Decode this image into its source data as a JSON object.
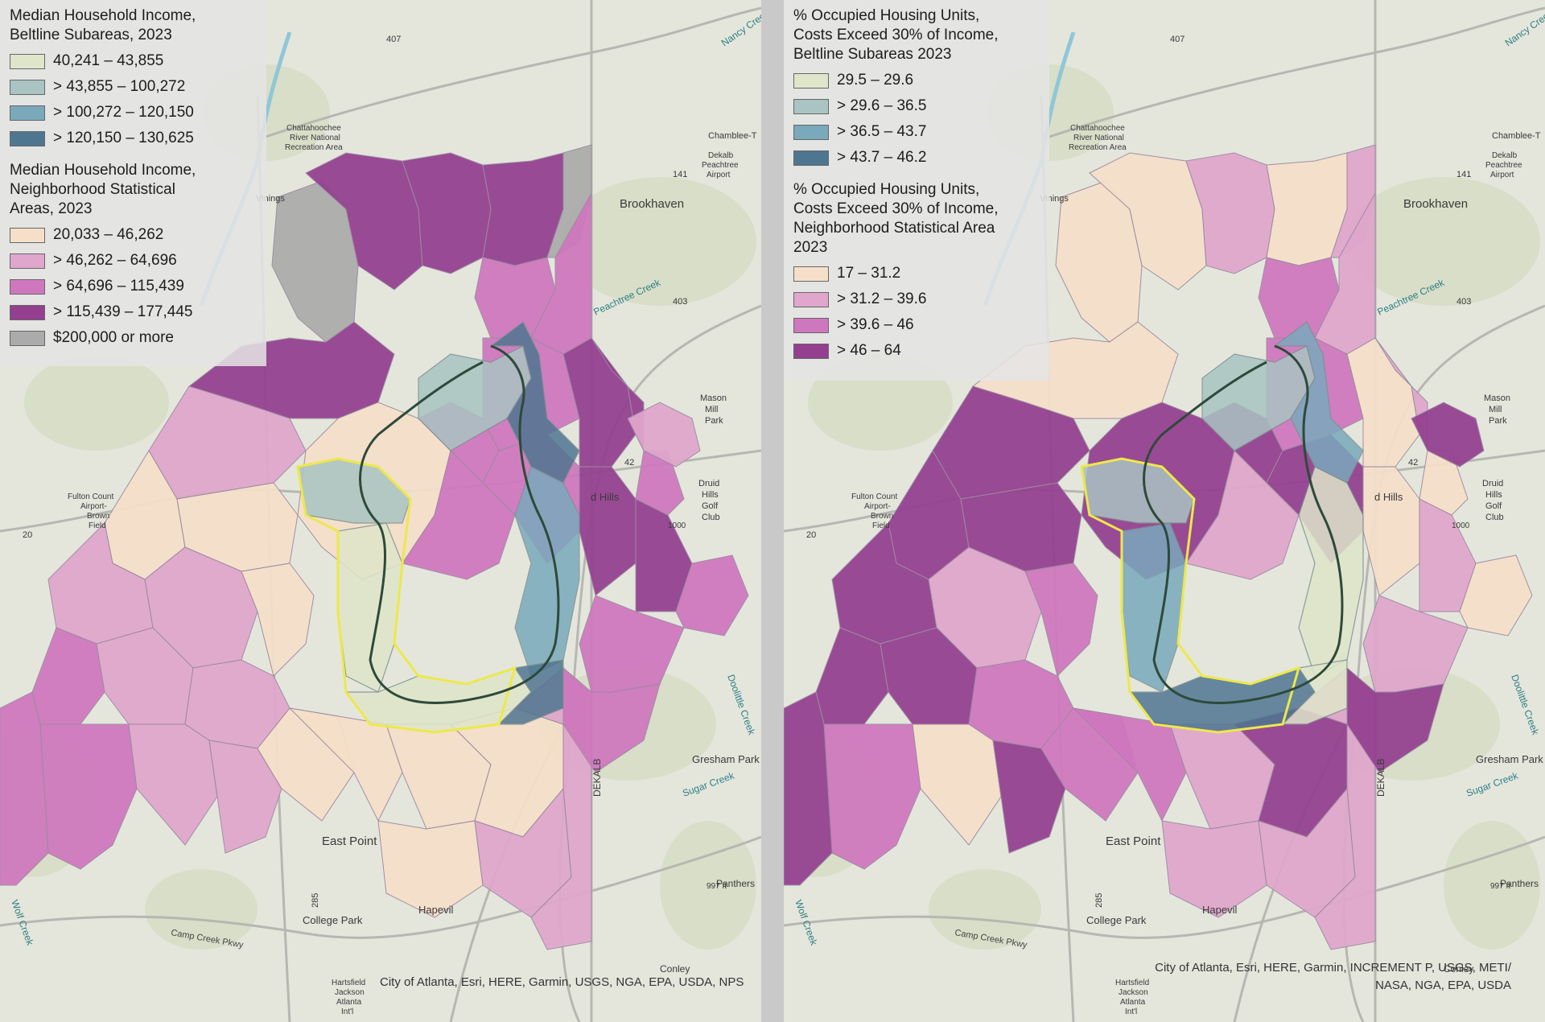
{
  "left_map": {
    "beltline_legend": {
      "title": "Median Household Income, Beltline Subareas, 2023",
      "title_lines": [
        "Median Household Income,",
        "Beltline Subareas, 2023"
      ],
      "classes": [
        {
          "label": "40,241 – 43,855",
          "color": "#dfe5c9"
        },
        {
          "label": "> 43,855 – 100,272",
          "color": "#a9c4c2"
        },
        {
          "label": "> 100,272 – 120,150",
          "color": "#7aa9bc"
        },
        {
          "label": "> 120,150 – 130,625",
          "color": "#4f7691"
        }
      ]
    },
    "nsa_legend": {
      "title": "Median Household Income, Neighborhood Statistical Areas, 2023",
      "title_lines": [
        "Median Household Income,",
        "Neighborhood Statistical",
        "Areas, 2023"
      ],
      "classes": [
        {
          "label": "20,033 – 46,262",
          "color": "#f6dfc9"
        },
        {
          "label": "> 46,262 – 64,696",
          "color": "#e0a6cc"
        },
        {
          "label": "> 64,696 – 115,439",
          "color": "#cf77be"
        },
        {
          "label": "> 115,439 – 177,445",
          "color": "#943f8f"
        },
        {
          "label": "$200,000 or more",
          "color": "#ababab"
        }
      ]
    },
    "credit": "City of Atlanta, Esri, HERE, Garmin, USGS, NGA, EPA, USDA, NPS"
  },
  "right_map": {
    "beltline_legend": {
      "title": "% Occupied Housing Units, Costs Exceed 30% of Income, Beltline Subareas 2023",
      "title_lines": [
        "% Occupied Housing Units,",
        "Costs Exceed 30% of Income,",
        "Beltline Subareas 2023"
      ],
      "classes": [
        {
          "label": "29.5 – 29.6",
          "color": "#dfe5c9"
        },
        {
          "label": "> 29.6 – 36.5",
          "color": "#a9c4c2"
        },
        {
          "label": "> 36.5 – 43.7",
          "color": "#7aa9bc"
        },
        {
          "label": "> 43.7 – 46.2",
          "color": "#4f7691"
        }
      ]
    },
    "nsa_legend": {
      "title": "% Occupied Housing Units, Costs Exceed 30% of Income, Neighborhood Statistical Area 2023",
      "title_lines": [
        "% Occupied Housing Units,",
        "Costs Exceed 30% of Income,",
        "Neighborhood Statistical Area",
        "2023"
      ],
      "classes": [
        {
          "label": "17 – 31.2",
          "color": "#f6dfc9"
        },
        {
          "label": "> 31.2 – 39.6",
          "color": "#e0a6cc"
        },
        {
          "label": "> 39.6 – 46",
          "color": "#cf77be"
        },
        {
          "label": "> 46 – 64",
          "color": "#943f8f"
        }
      ]
    },
    "credit_lines": [
      "City of Atlanta, Esri, HERE, Garmin, INCREMENT P, USGS, METI/",
      "NASA, NGA, EPA, USDA"
    ]
  },
  "place_labels": {
    "brookhaven": "Brookhaven",
    "east_point": "East Point",
    "college_park": "College Park",
    "hapeville": "Hapevil",
    "druid_hills_1": "Druid",
    "druid_hills_2": "Hills",
    "druid_hills_3": "Golf",
    "druid_hills_4": "Club",
    "d_hills": "d Hills",
    "mason_1": "Mason",
    "mason_2": "Mill",
    "mason_3": "Park",
    "gresham": "Gresham Park",
    "panthers": "Panthers",
    "dekalb": "DEKALB",
    "conley": "Conley",
    "chatt_1": "Chattahoochee",
    "chatt_2": "River National",
    "chatt_3": "Recreation Area",
    "dekalb_air_1": "Dekalb",
    "dekalb_air_2": "Peachtree",
    "dekalb_air_3": "Airport",
    "fulton_1": "Fulton Count",
    "fulton_2": "Airport-",
    "fulton_3": "Brown",
    "fulton_4": "Field",
    "hartsfield_1": "Hartsfield",
    "hartsfield_2": "Jackson",
    "hartsfield_3": "Atlanta",
    "hartsfield_4": "Int'l",
    "peachtree_creek": "Peachtree Creek",
    "nancy_creek": "Nancy Creek",
    "sugar_creek": "Sugar Creek",
    "doolittle_creek": "Doolittle Creek",
    "camp_creek": "Camp Creek Pkwy",
    "wolf_creek": "Wolf Creek",
    "vinings": "Vinings",
    "chamblee": "Chamblee-T",
    "road_407": "407",
    "road_285": "285",
    "road_141": "141",
    "road_403": "403",
    "road_42": "42",
    "road_20": "20",
    "road_1000": "1000",
    "road_997": "997 ft"
  }
}
